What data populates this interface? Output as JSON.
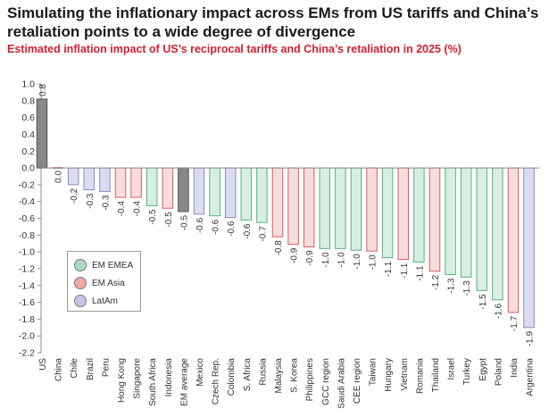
{
  "title": "Simulating the inflationary impact across EMs from US tariffs and China’s retaliation points to a wide degree of divergence",
  "subtitle": "Estimated inflation impact of US’s reciprocal tariffs and China’s retaliation in 2025 (%)",
  "legend": {
    "items": [
      {
        "label": "EM EMEA",
        "color": "#a8dcc0"
      },
      {
        "label": "EM Asia",
        "color": "#f0a8a8"
      },
      {
        "label": "LatAm",
        "color": "#c4c4e4"
      }
    ]
  },
  "colors": {
    "EMEA": "#d6efe0",
    "EMEA_edge": "#59b083",
    "Asia": "#f9dcdc",
    "Asia_edge": "#dc5c5c",
    "LatAm": "#dcdcf0",
    "LatAm_edge": "#8a8ac8",
    "Ref": "#888888",
    "Ref_edge": "#555555",
    "China": "#d94040"
  },
  "chart_data": {
    "type": "bar",
    "title": "Estimated inflation impact of US’s reciprocal tariffs and China’s retaliation in 2025 (%)",
    "xlabel": "",
    "ylabel": "",
    "ylim": [
      -2.2,
      1.0
    ],
    "yticks": [
      "1.0",
      "0.8",
      "0.6",
      "0.4",
      "0.2",
      "0.0",
      "-0.2",
      "-0.4",
      "-0.6",
      "-0.8",
      "-1.0",
      "-1.2",
      "-1.4",
      "-1.6",
      "-1.8",
      "-2.0",
      "-2.2"
    ],
    "categories": [
      "US",
      "China",
      "Chile",
      "Brazil",
      "Peru",
      "Hong Kong",
      "Singapore",
      "South Africa",
      "Indonesia",
      "EM average",
      "Mexico",
      "Czech Rep.",
      "Colombia",
      "S. Africa",
      "Russia",
      "Malaysia",
      "S. Korea",
      "Philippines",
      "GCC region",
      "Saudi Arabia",
      "CEE region",
      "Taiwan",
      "Hungary",
      "Vietnam",
      "Romania",
      "Thailand",
      "Israel",
      "Turkey",
      "Egypt",
      "Poland",
      "India",
      "Argentina"
    ],
    "values": [
      0.82,
      -0.01,
      -0.2,
      -0.26,
      -0.28,
      -0.35,
      -0.35,
      -0.45,
      -0.48,
      -0.52,
      -0.55,
      -0.57,
      -0.59,
      -0.62,
      -0.65,
      -0.82,
      -0.91,
      -0.94,
      -0.96,
      -0.96,
      -0.98,
      -0.99,
      -1.07,
      -1.09,
      -1.12,
      -1.23,
      -1.27,
      -1.3,
      -1.46,
      -1.57,
      -1.72,
      -1.9
    ],
    "data_labels": [
      "0.8",
      "0.0",
      "-0.2",
      "-0.3",
      "-0.3",
      "-0.4",
      "-0.4",
      "-0.5",
      "-0.5",
      "-0.5",
      "-0.6",
      "-0.6",
      "-0.6",
      "-0.6",
      "-0.7",
      "-0.8",
      "-0.9",
      "-0.9",
      "-1.0",
      "-1.0",
      "-1.0",
      "-1.0",
      "-1.1",
      "-1.1",
      "-1.1",
      "-1.2",
      "-1.3",
      "-1.3",
      "-1.5",
      "-1.6",
      "-1.7",
      "-1.9"
    ],
    "groups": [
      "Ref",
      "China",
      "LatAm",
      "LatAm",
      "LatAm",
      "Asia",
      "Asia",
      "EMEA",
      "Asia",
      "Ref",
      "LatAm",
      "EMEA",
      "LatAm",
      "EMEA",
      "EMEA",
      "Asia",
      "Asia",
      "Asia",
      "EMEA",
      "EMEA",
      "EMEA",
      "Asia",
      "EMEA",
      "Asia",
      "EMEA",
      "Asia",
      "EMEA",
      "EMEA",
      "EMEA",
      "EMEA",
      "Asia",
      "LatAm"
    ],
    "legend_position": "left-middle",
    "grid": false
  }
}
